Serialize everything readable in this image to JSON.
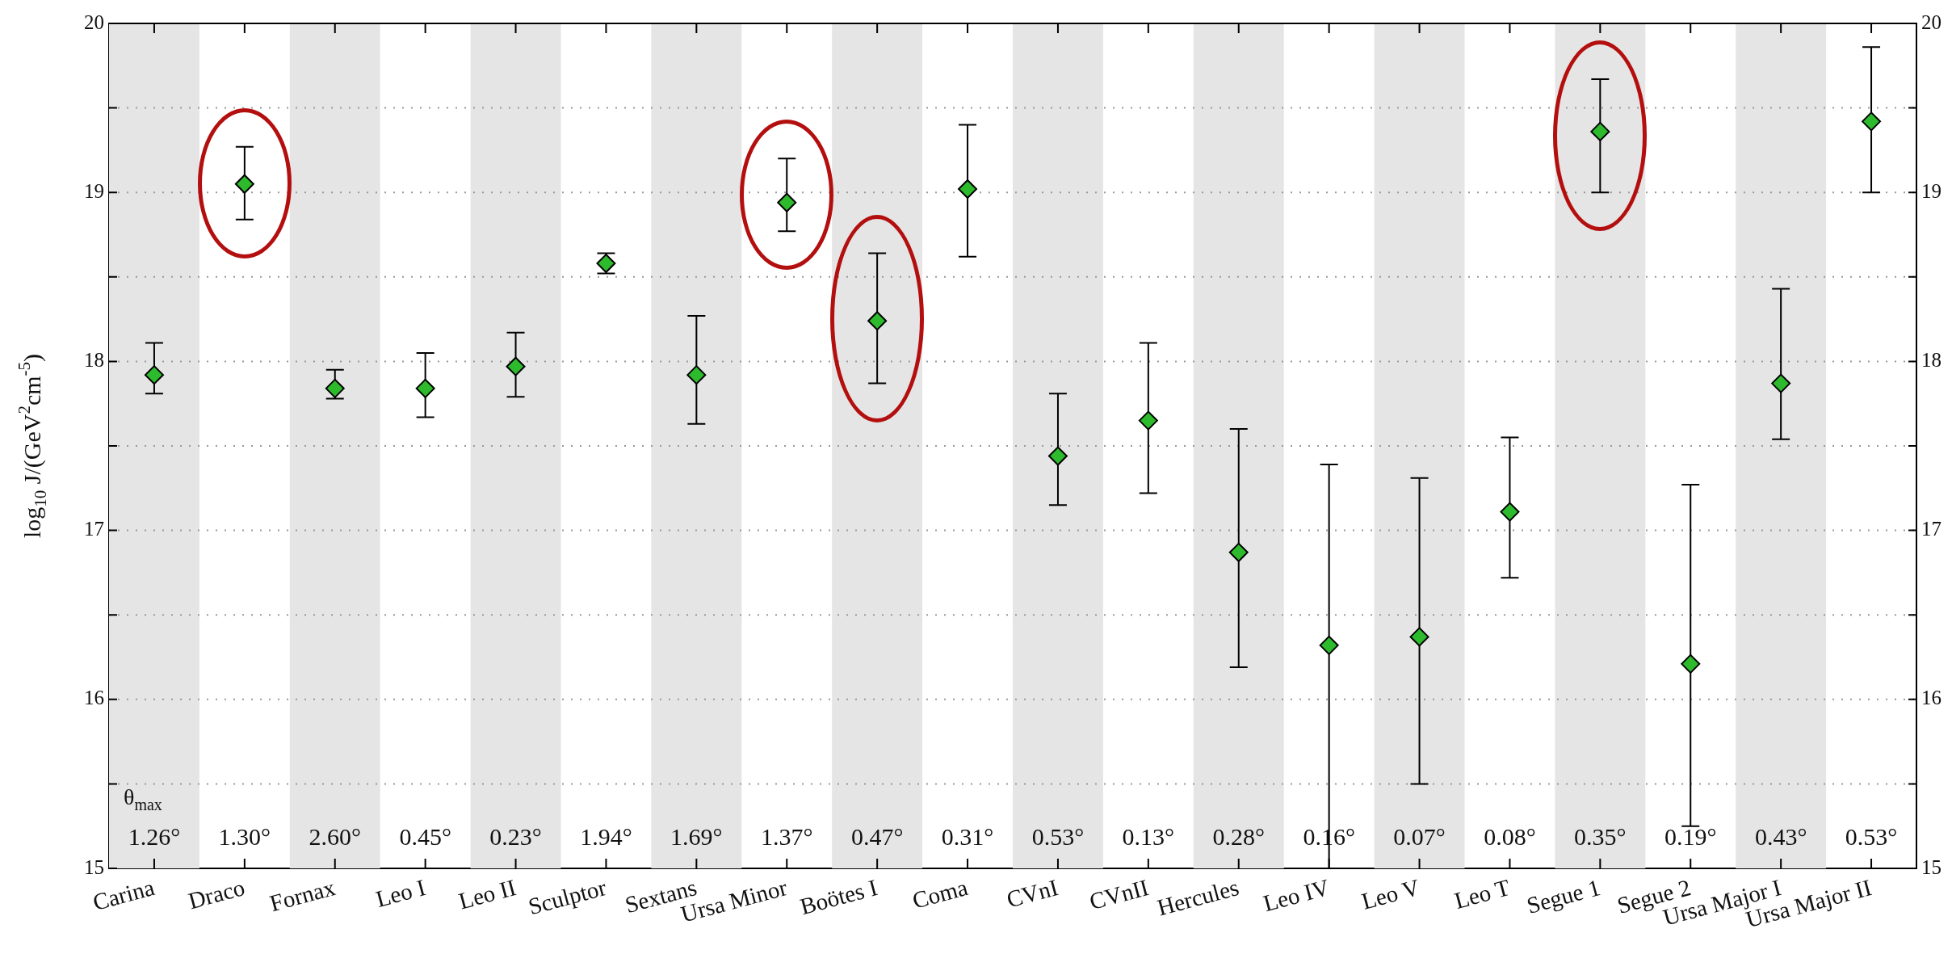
{
  "chart_data": {
    "type": "scatter",
    "ylabel": "log$_{10}$ J/(GeV$^{2}$cm$^{-5}$)",
    "categories": [
      "Carina",
      "Draco",
      "Fornax",
      "Leo I",
      "Leo II",
      "Sculptor",
      "Sextans",
      "Ursa Minor",
      "Boötes I",
      "Coma",
      "CVnI",
      "CVnII",
      "Hercules",
      "Leo IV",
      "Leo V",
      "Leo T",
      "Segue 1",
      "Segue 2",
      "Ursa Major I",
      "Ursa Major II"
    ],
    "values": [
      17.92,
      19.05,
      17.84,
      17.84,
      17.97,
      18.58,
      17.92,
      18.94,
      18.24,
      19.02,
      17.44,
      17.65,
      16.87,
      16.32,
      16.37,
      17.11,
      19.36,
      16.21,
      17.87,
      19.42
    ],
    "errors": [
      [
        17.81,
        18.11
      ],
      [
        18.84,
        19.27
      ],
      [
        17.78,
        17.95
      ],
      [
        17.67,
        18.05
      ],
      [
        17.79,
        18.17
      ],
      [
        18.52,
        18.64
      ],
      [
        17.63,
        18.27
      ],
      [
        18.77,
        19.2
      ],
      [
        17.87,
        18.64
      ],
      [
        18.62,
        19.4
      ],
      [
        17.15,
        17.81
      ],
      [
        17.22,
        18.11
      ],
      [
        16.19,
        17.6
      ],
      [
        15,
        17.39
      ],
      [
        15.5,
        17.31
      ],
      [
        16.72,
        17.55
      ],
      [
        19,
        19.67
      ],
      [
        15.25,
        17.27
      ],
      [
        17.54,
        18.43
      ],
      [
        19,
        19.86
      ]
    ],
    "color": "#2dbb2d",
    "marker": "diamond",
    "ylim": [
      15,
      20
    ],
    "yticks": [
      15,
      {
        "value": 15.5,
        "label": null
      },
      16,
      {
        "value": 16.5,
        "label": null
      },
      17,
      {
        "value": 17.5,
        "label": null
      },
      18,
      {
        "value": 18.5,
        "label": null
      },
      19,
      {
        "value": 19.5,
        "label": null
      },
      20
    ],
    "y2lim": [
      15,
      20
    ],
    "y2ticks": [
      15,
      {
        "value": 15.5,
        "label": null
      },
      16,
      {
        "value": 16.5,
        "label": null
      },
      17,
      {
        "value": 17.5,
        "label": null
      },
      18,
      {
        "value": 18.5,
        "label": null
      },
      19,
      {
        "value": 19.5,
        "label": null
      },
      20
    ],
    "grid": "y",
    "legend": false,
    "annotations": [
      "θ$_{max}$",
      "1.26°",
      "1.30°",
      "2.60°",
      "0.45°",
      "0.23°",
      "1.94°",
      "1.69°",
      "1.37°",
      "0.47°",
      "0.31°",
      "0.53°",
      "0.13°",
      "0.28°",
      "0.16°",
      "0.07°",
      "0.08°",
      "0.35°",
      "0.19°",
      "0.43°",
      "0.53°"
    ]
  }
}
